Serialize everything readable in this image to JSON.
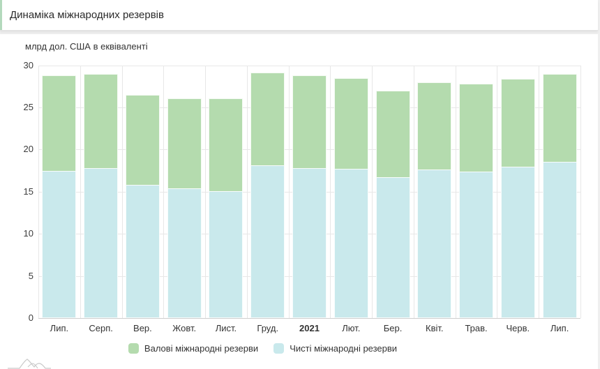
{
  "header": {
    "title": "Динаміка міжнародних резервів"
  },
  "chart_data": {
    "type": "bar",
    "title": "Динаміка міжнародних резервів",
    "units_label": "млрд дол. США в еквіваленті",
    "categories": [
      "Лип.",
      "Серп.",
      "Вер.",
      "Жовт.",
      "Лист.",
      "Груд.",
      "2021",
      "Лют.",
      "Бер.",
      "Квіт.",
      "Трав.",
      "Черв.",
      "Лип."
    ],
    "bold_category": "2021",
    "series": [
      {
        "name": "Валові міжнародні резерви",
        "color": "#b4dbae",
        "values": [
          28.8,
          29.0,
          26.5,
          26.1,
          26.1,
          29.1,
          28.8,
          28.5,
          27.0,
          28.0,
          27.8,
          28.4,
          29.0
        ]
      },
      {
        "name": "Чисті міжнародні резерви",
        "color": "#c9e9ec",
        "values": [
          17.5,
          17.8,
          15.8,
          15.4,
          15.1,
          18.1,
          17.8,
          17.7,
          16.7,
          17.6,
          17.4,
          18.0,
          18.5
        ]
      }
    ],
    "y_ticks": [
      0,
      5,
      10,
      15,
      20,
      25,
      30
    ],
    "ylim": [
      0,
      30
    ],
    "xlabel": "",
    "ylabel": "",
    "grid": true,
    "bar_mode": "overlay",
    "legend_position": "bottom"
  },
  "colors": {
    "accent": "#b3d9bc",
    "grid": "#e7e7e7",
    "axis": "#cfcfcf",
    "text": "#333333",
    "page_bg": "#efefef",
    "card_bg": "#ffffff",
    "watermark": "#c9c9c9"
  }
}
